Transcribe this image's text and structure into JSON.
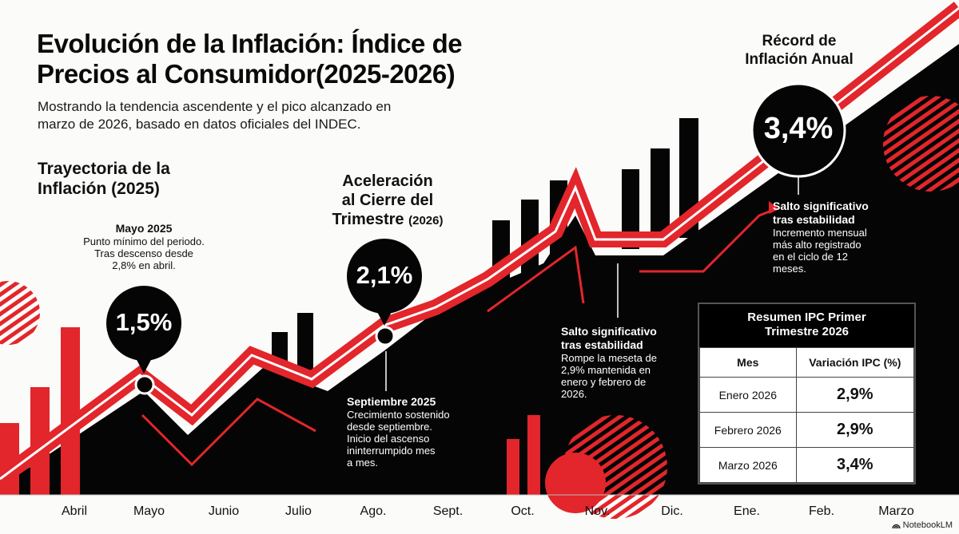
{
  "header": {
    "title_line1": "Evolución de la Inflación: Índice de",
    "title_line2": "Precios al Consumidor(2025-2026)",
    "subtitle_line1": "Mostrando la tendencia ascendente y el pico alcanzado en",
    "subtitle_line2": "marzo de 2026, basado en datos oficiales del INDEC."
  },
  "sections": {
    "trajectory_line1": "Trayectoria de la",
    "trajectory_line2": "Inflación (2025)",
    "acceleration_line1": "Aceleración",
    "acceleration_line2": "al Cierre del",
    "acceleration_line3": "Trimestre",
    "acceleration_year": "(2026)",
    "record_line1": "Récord de",
    "record_line2": "Inflación Anual"
  },
  "bubbles": {
    "may": "1,5%",
    "september": "2,1%",
    "march": "3,4%"
  },
  "annotations": {
    "may": {
      "heading": "Mayo 2025",
      "lines": [
        "Punto mínimo del periodo.",
        "Tras descenso desde",
        "2,8% en abril."
      ]
    },
    "september": {
      "heading": "Septiembre 2025",
      "lines": [
        "Crecimiento sostenido",
        "desde septiembre.",
        "Inicio del ascenso",
        "ininterrumpido mes",
        "a mes."
      ]
    },
    "jump": {
      "heading_line1": "Salto significativo",
      "heading_line2": "tras estabilidad",
      "lines": [
        "Rompe la meseta de",
        "2,9% mantenida en",
        "enero y febrero de",
        "2026."
      ]
    },
    "record": {
      "heading_line1": "Salto significativo",
      "heading_line2": "tras estabilidad",
      "lines": [
        "Incremento mensual",
        "más alto registrado",
        "en el ciclo de 12",
        "meses."
      ]
    }
  },
  "summary_table": {
    "title_line1": "Resumen IPC Primer",
    "title_line2": "Trimestre 2026",
    "headers": [
      "Mes",
      "Variación IPC (%)"
    ],
    "rows": [
      [
        "Enero 2026",
        "2,9%"
      ],
      [
        "Febrero 2026",
        "2,9%"
      ],
      [
        "Marzo 2026",
        "3,4%"
      ]
    ]
  },
  "brand": "NotebookLM",
  "colors": {
    "accent_red": "#e2262b",
    "dark": "#050505",
    "background": "#fbfbf9"
  },
  "chart_data": {
    "type": "line",
    "title": "Evolución de la Inflación: Índice de Precios al Consumidor(2025-2026)",
    "xlabel": "",
    "ylabel": "",
    "categories": [
      "Abril",
      "Mayo",
      "Junio",
      "Julio",
      "Ago.",
      "Sept.",
      "Oct.",
      "Nov.",
      "Dic.",
      "Ene.",
      "Feb.",
      "Marzo"
    ],
    "highlighted_points": [
      {
        "category": "Abril",
        "value": 2.8,
        "label": "2,8%"
      },
      {
        "category": "Mayo",
        "value": 1.5,
        "label": "1,5%"
      },
      {
        "category": "Sept.",
        "value": 2.1,
        "label": "2,1%"
      },
      {
        "category": "Ene.",
        "value": 2.9,
        "label": "2,9%"
      },
      {
        "category": "Feb.",
        "value": 2.9,
        "label": "2,9%"
      },
      {
        "category": "Marzo",
        "value": 3.4,
        "label": "3,4%"
      }
    ],
    "trend": "ascending",
    "grid": false,
    "legend": "none"
  }
}
